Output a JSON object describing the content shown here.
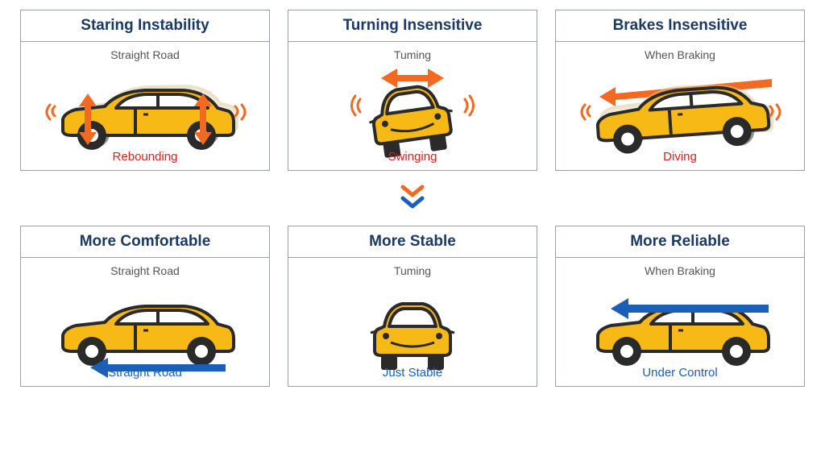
{
  "colors": {
    "car_body": "#f7b916",
    "car_outline": "#2a2a2a",
    "wheel": "#2a2a2a",
    "wheel_inner": "#ffffff",
    "window": "#ffffff",
    "ghost": "#e8d9b1",
    "orange": "#f26a21",
    "blue": "#1b5fb8",
    "red_text": "#e02020",
    "blue_text": "#1b5fb8",
    "title_text": "#1b3a63",
    "sub_text": "#555555",
    "border": "#9aa0a6"
  },
  "top": {
    "caption_color": "#e02020",
    "cards": [
      {
        "title": "Staring Instability",
        "sub": "Straight Road",
        "caption": "Rebounding",
        "type": "side_rebound"
      },
      {
        "title": "Turning Insensitive",
        "sub": "Tuming",
        "caption": "Swinging",
        "type": "front_swing"
      },
      {
        "title": "Brakes Insensitive",
        "sub": "When Braking",
        "caption": "Diving",
        "type": "side_dive"
      }
    ]
  },
  "bottom": {
    "caption_color": "#1b5fb8",
    "cards": [
      {
        "title": "More Comfortable",
        "sub": "Straight Road",
        "caption": "Straight Road",
        "type": "side_straight"
      },
      {
        "title": "More Stable",
        "sub": "Tuming",
        "caption": "Just Stable",
        "type": "front_stable"
      },
      {
        "title": "More Reliable",
        "sub": "When Braking",
        "caption": "Under Control",
        "type": "side_control"
      }
    ]
  }
}
